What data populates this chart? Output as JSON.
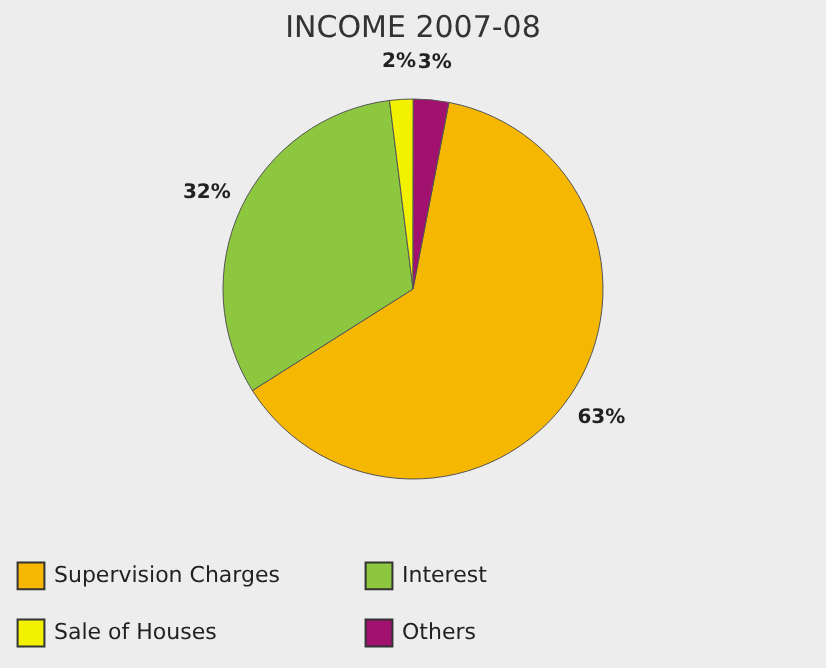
{
  "chart_data": {
    "type": "pie",
    "title": "INCOME 2007-08",
    "categories": [
      "Supervision Charges",
      "Interest",
      "Sale of Houses",
      "Others"
    ],
    "values": [
      63,
      32,
      2,
      3
    ],
    "colors": [
      "#f5b700",
      "#8dc63f",
      "#f2f200",
      "#a0126e"
    ],
    "value_labels": [
      "63%",
      "32%",
      "2%",
      "3%"
    ],
    "legend": "bottom"
  }
}
